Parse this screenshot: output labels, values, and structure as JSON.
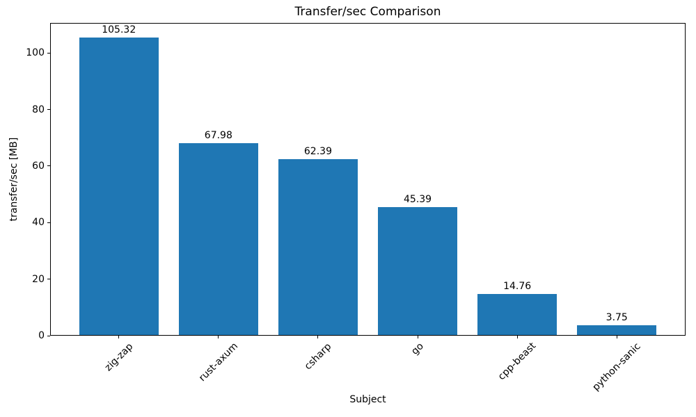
{
  "chart_data": {
    "type": "bar",
    "title": "Transfer/sec Comparison",
    "xlabel": "Subject",
    "ylabel": "transfer/sec [MB]",
    "categories": [
      "zig-zap",
      "rust-axum",
      "csharp",
      "go",
      "cpp-beast",
      "python-sanic"
    ],
    "values": [
      105.32,
      67.98,
      62.39,
      45.39,
      14.76,
      3.75
    ],
    "value_labels": [
      "105.32",
      "67.98",
      "62.39",
      "45.39",
      "14.76",
      "3.75"
    ],
    "yticks": [
      0,
      20,
      40,
      60,
      80,
      100
    ],
    "ylim": [
      0,
      110.6
    ],
    "bar_color": "#1f77b4",
    "text_color": "#000000",
    "grid": false,
    "legend": null,
    "bar_label_position": "above"
  }
}
